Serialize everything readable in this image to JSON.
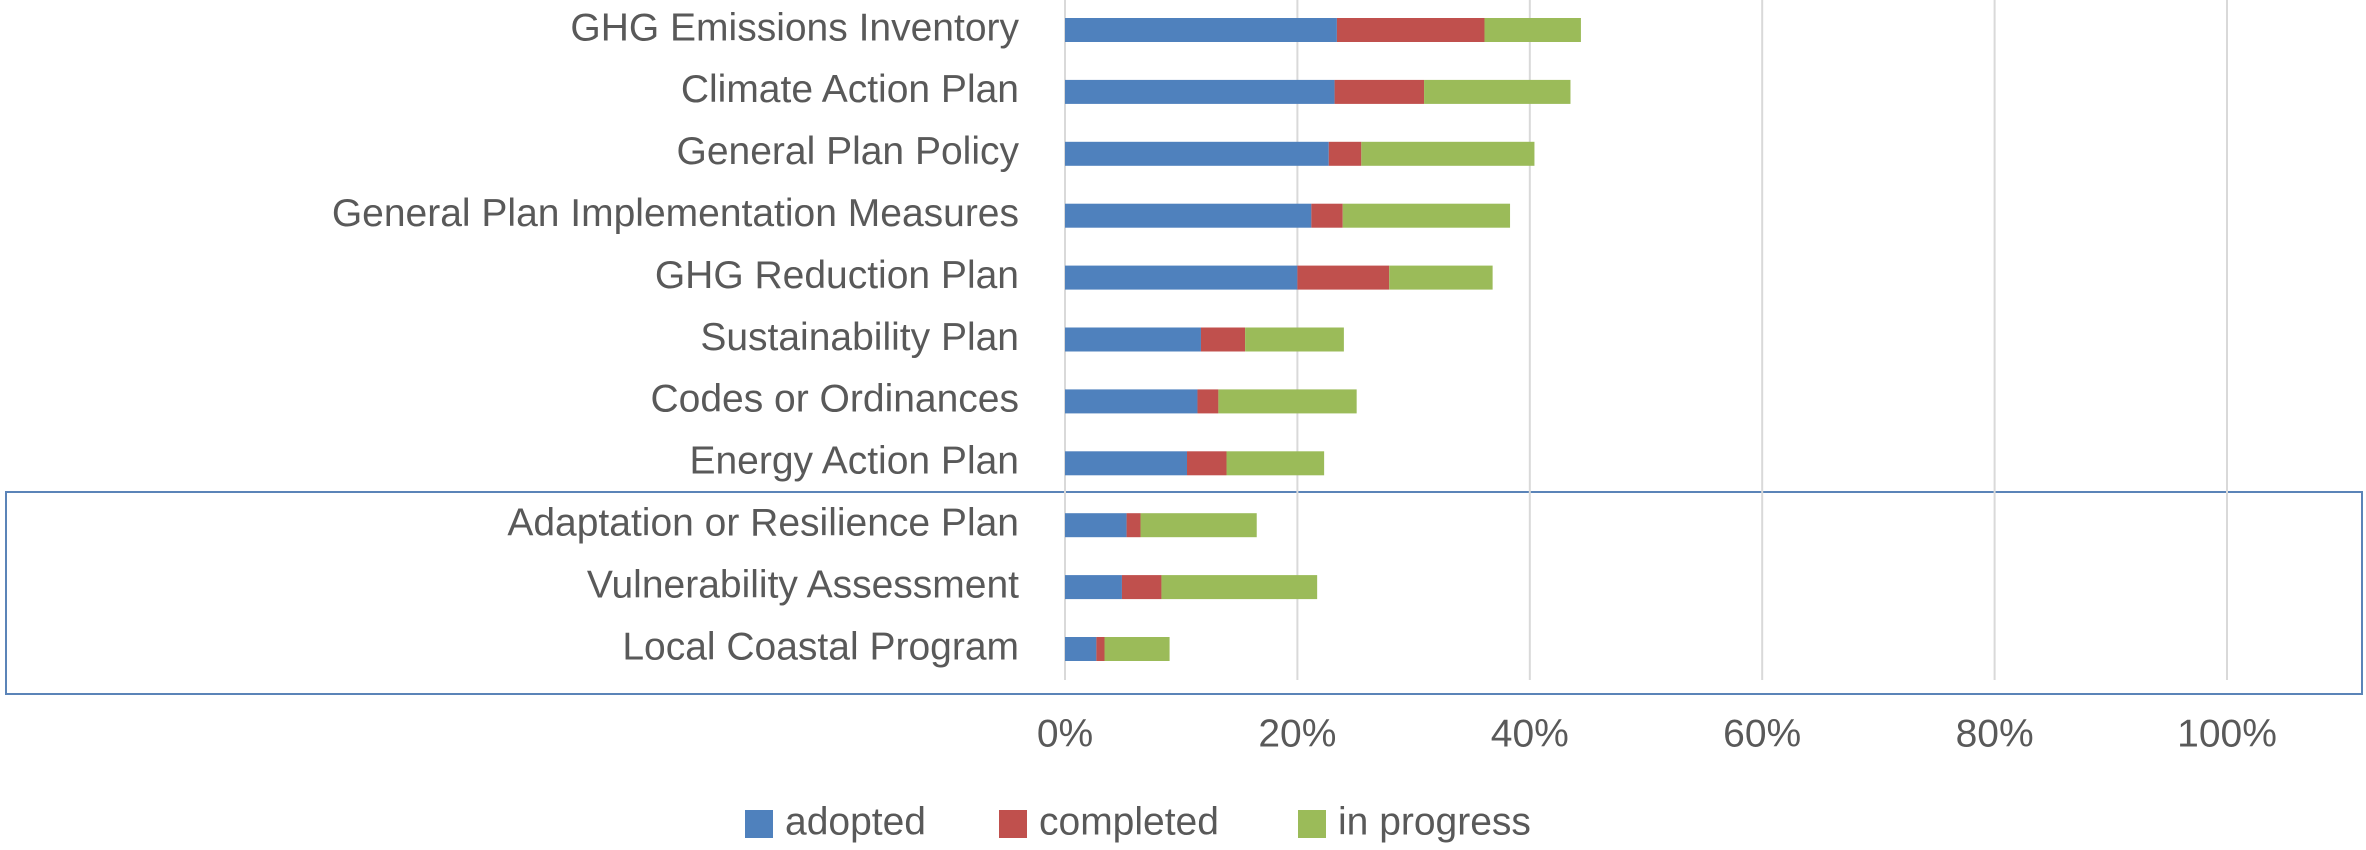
{
  "chart_data": {
    "type": "stacked_bar_horizontal",
    "categories": [
      "GHG Emissions Inventory",
      "Climate Action Plan",
      "General Plan Policy",
      "General Plan Implementation Measures",
      "GHG Reduction Plan",
      "Sustainability Plan",
      "Codes or Ordinances",
      "Energy Action Plan",
      "Adaptation or Resilience Plan",
      "Vulnerability Assessment",
      "Local Coastal Program"
    ],
    "series": [
      {
        "name": "adopted",
        "color": "#4f81bd",
        "values": [
          23.4,
          23.2,
          22.7,
          21.2,
          20.0,
          11.7,
          11.4,
          10.5,
          5.3,
          4.9,
          2.7
        ]
      },
      {
        "name": "completed",
        "color": "#c0504d",
        "values": [
          12.7,
          7.7,
          2.8,
          2.7,
          7.9,
          3.8,
          1.8,
          3.4,
          1.2,
          3.4,
          0.7
        ]
      },
      {
        "name": "in progress",
        "color": "#9bbb59",
        "values": [
          8.3,
          12.6,
          14.9,
          14.4,
          8.9,
          8.5,
          11.9,
          8.4,
          10.0,
          13.4,
          5.6
        ]
      }
    ],
    "xlim": [
      0,
      100
    ],
    "xticks": [
      {
        "value": 0,
        "label": "0%"
      },
      {
        "value": 20,
        "label": "20%"
      },
      {
        "value": 40,
        "label": "40%"
      },
      {
        "value": 60,
        "label": "60%"
      },
      {
        "value": 80,
        "label": "80%"
      },
      {
        "value": 100,
        "label": "100%"
      }
    ],
    "grid": true,
    "legend": "bottom"
  }
}
